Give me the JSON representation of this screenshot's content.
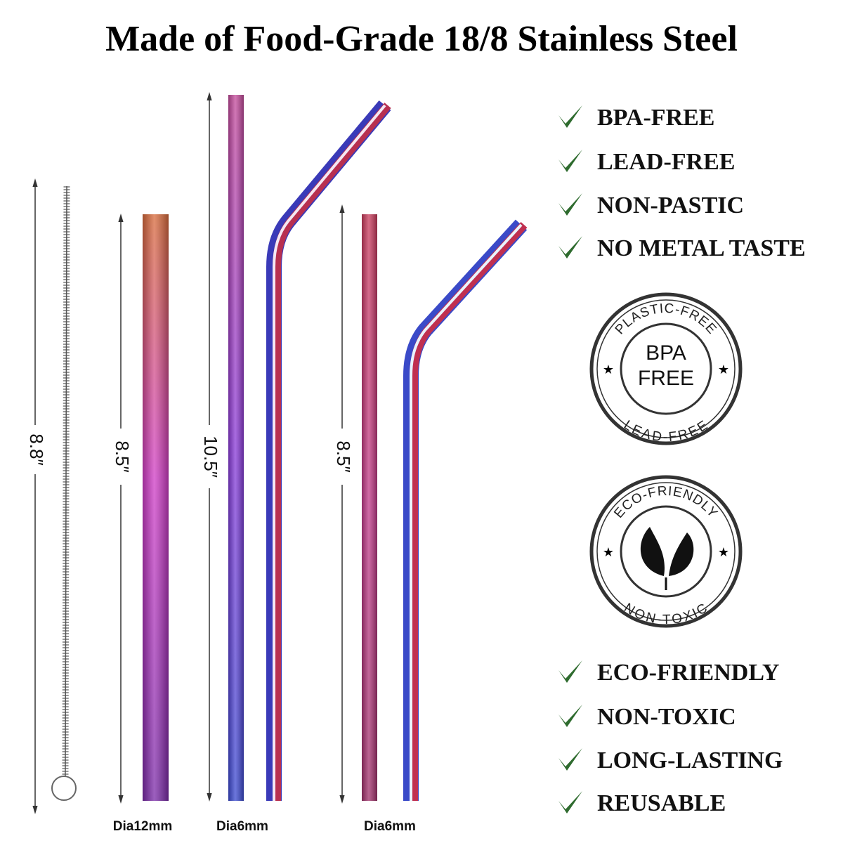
{
  "title": "Made of Food-Grade 18/8 Stainless Steel",
  "dimensions": [
    "8.8″",
    "8.5″",
    "10.5″",
    "8.5″"
  ],
  "diameters": [
    "Dia12mm",
    "Dia6mm",
    "Dia6mm"
  ],
  "features_top": [
    "BPA-FREE",
    "LEAD-FREE",
    "NON-PASTIC",
    "NO METAL TASTE"
  ],
  "badges": [
    {
      "top": "PLASTIC-FREE",
      "center": [
        "BPA",
        "FREE"
      ],
      "bottom": "LEAD-FREE"
    },
    {
      "top": "ECO-FRIENDLY",
      "bottom": "NON-TOXIC"
    }
  ],
  "features_bottom": [
    "ECO-FRIENDLY",
    "NON-TOXIC",
    "LONG-LASTING",
    "REUSABLE"
  ]
}
